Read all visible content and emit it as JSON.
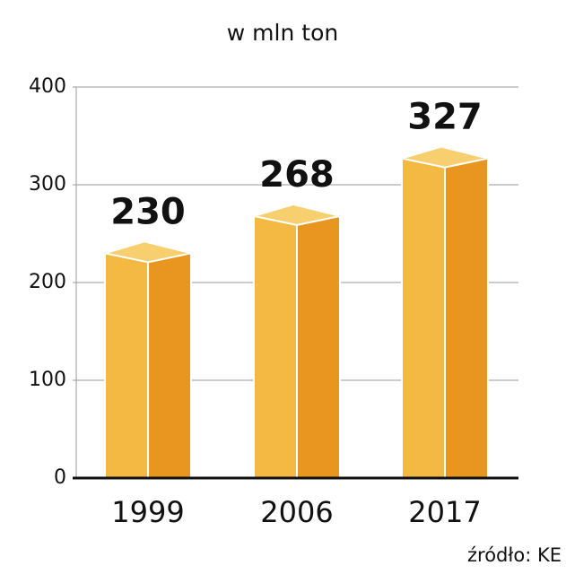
{
  "chart_data": {
    "type": "bar3d",
    "title": "w mln ton",
    "categories": [
      "1999",
      "2006",
      "2017"
    ],
    "values": [
      230,
      268,
      327
    ],
    "colors": {
      "front": "#f4b942",
      "side": "#e8961f",
      "top": "#f8cf6e"
    },
    "ylim": [
      0,
      400
    ],
    "yticks": [
      0,
      100,
      200,
      300,
      400
    ],
    "grid": true,
    "source": "źródło: KE"
  }
}
